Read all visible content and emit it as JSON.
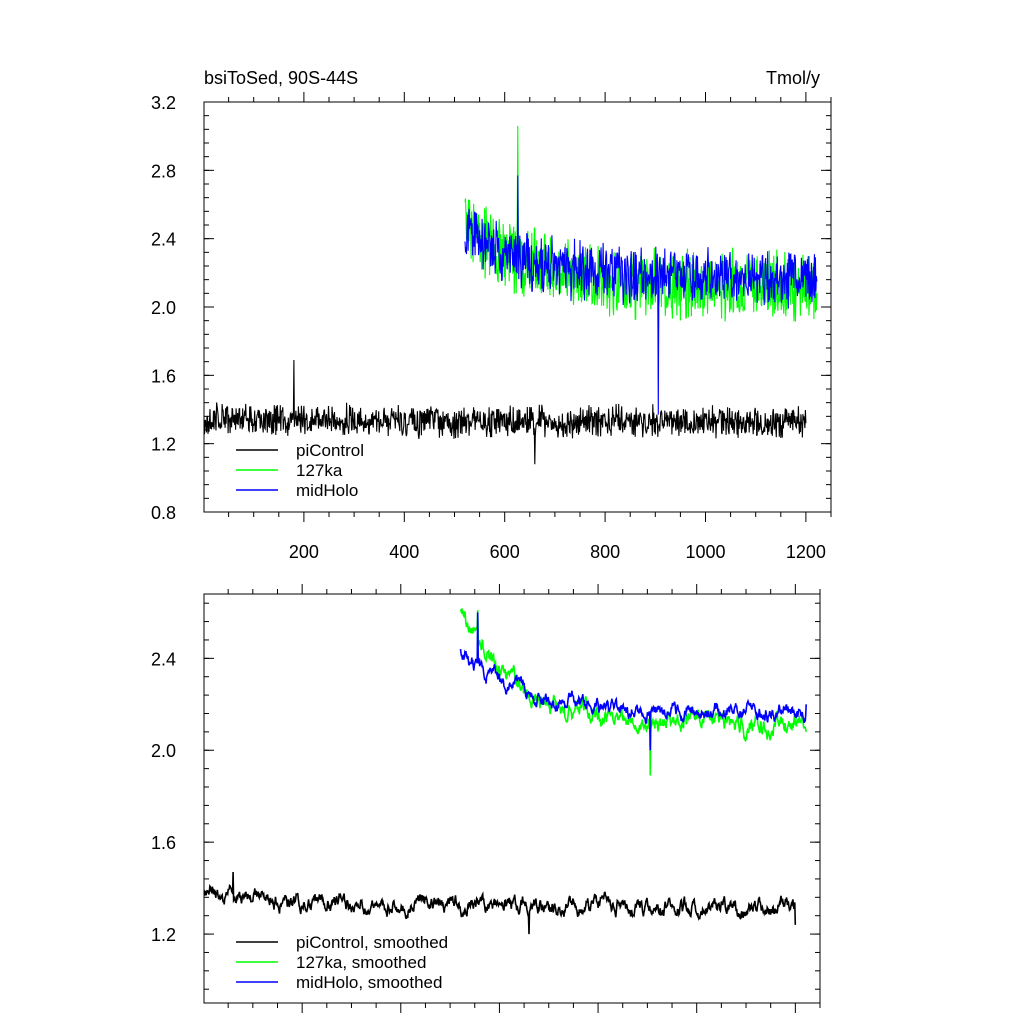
{
  "chart_data": [
    {
      "type": "line",
      "title": "bsiToSed, 90S-44S",
      "units": "Tmol/y",
      "xlim": [
        1,
        1250
      ],
      "ylim": [
        0.8,
        3.2
      ],
      "xticks": [
        200,
        400,
        600,
        800,
        1000,
        1200
      ],
      "xtick_labels": [
        "200",
        "400",
        "600",
        "800",
        "1000",
        "1200"
      ],
      "yticks": [
        0.8,
        1.2,
        1.6,
        2.0,
        2.4,
        2.8,
        3.2
      ],
      "ytick_labels": [
        "0.8",
        "1.2",
        "1.6",
        "2.0",
        "2.4",
        "2.8",
        "3.2"
      ],
      "legend": "bottom-left",
      "series": [
        {
          "name": "piControl",
          "color": "#000000",
          "x_range": [
            1,
            1200
          ],
          "start": 1.35,
          "end": 1.32,
          "mean": 1.33,
          "noise": 0.09,
          "spike_max": 1.69,
          "spike_min": 1.08
        },
        {
          "name": "127ka",
          "color": "#00ff00",
          "x_range": [
            521,
            1222
          ],
          "start": 2.5,
          "end": 2.08,
          "mean": 2.12,
          "noise": 0.2,
          "spike_max": 3.06,
          "spike_min": 1.57
        },
        {
          "name": "midHolo",
          "color": "#0000ff",
          "x_range": [
            521,
            1222
          ],
          "start": 2.45,
          "end": 2.15,
          "mean": 2.17,
          "noise": 0.16,
          "spike_max": 2.77,
          "spike_min": 1.37
        }
      ]
    },
    {
      "type": "line",
      "title": "",
      "xlim": [
        1,
        1250
      ],
      "ylim": [
        0.9,
        2.68
      ],
      "xticks": [
        200,
        400,
        600,
        800,
        1000,
        1200
      ],
      "yticks": [
        1.2,
        1.6,
        2.0,
        2.4
      ],
      "ytick_labels": [
        "1.2",
        "1.6",
        "2.0",
        "2.4"
      ],
      "legend": "bottom-left",
      "series": [
        {
          "name": "piControl, smoothed",
          "color": "#000000",
          "x_range": [
            1,
            1200
          ],
          "start": 1.38,
          "end": 1.24,
          "mean": 1.32,
          "noise": 0.05,
          "spike_max": 1.47,
          "spike_min": 1.2
        },
        {
          "name": "127ka, smoothed",
          "color": "#00ff00",
          "x_range": [
            521,
            1222
          ],
          "start": 2.6,
          "end": 2.08,
          "mean": 2.11,
          "noise": 0.06,
          "spike_max": 2.61,
          "spike_min": 1.89
        },
        {
          "name": "midHolo, smoothed",
          "color": "#0000ff",
          "x_range": [
            521,
            1222
          ],
          "start": 2.45,
          "end": 2.2,
          "mean": 2.16,
          "noise": 0.05,
          "spike_max": 2.6,
          "spike_min": 2.0
        }
      ]
    }
  ]
}
